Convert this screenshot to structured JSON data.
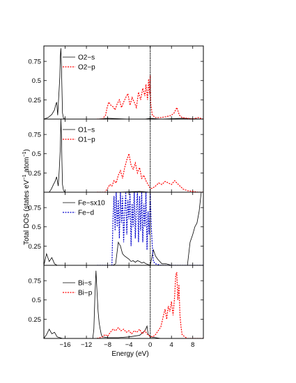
{
  "chart_data": {
    "type": "line",
    "xlabel": "Energy (eV)",
    "ylabel_main": "Total DOS (states eV",
    "ylabel_sup1": "−1",
    "ylabel_mid": " atom",
    "ylabel_sup2": "−1",
    "ylabel_end": ")",
    "xlim": [
      -20,
      10
    ],
    "x_ticks": [
      -16,
      -12,
      -8,
      -4,
      0,
      4,
      8
    ],
    "x_tick_labels": [
      "−16",
      "−12",
      "−8",
      "−4",
      "0",
      "4",
      "8"
    ],
    "fermi_level": 0,
    "panels": [
      {
        "ylim": [
          0,
          0.95
        ],
        "y_ticks": [
          0.25,
          0.5,
          0.75
        ],
        "y_tick_labels": [
          "0.25",
          "0.5",
          "0.75"
        ],
        "series": [
          {
            "name": "O2−s",
            "color": "#000000",
            "dash": "",
            "x": [
              -20,
              -19.2,
              -18.5,
              -18,
              -17.8,
              -17.6,
              -17.4,
              -17.2,
              -17.0,
              -16.9,
              -16.8,
              -16.7,
              -16.6,
              -16.5,
              -16.3,
              -16.0,
              -14,
              -10,
              -8,
              -4,
              -1,
              0,
              2,
              6,
              10
            ],
            "y": [
              0.0,
              0.02,
              0.06,
              0.12,
              0.18,
              0.22,
              0.05,
              0.3,
              0.55,
              0.82,
              0.92,
              0.7,
              0.4,
              0.08,
              0.01,
              0.0,
              0.0,
              0.0,
              0.01,
              0.0,
              0.0,
              0.01,
              0.0,
              0.01,
              0.0
            ]
          },
          {
            "name": "O2−p",
            "color": "#ff0000",
            "dash": "2,1.5",
            "x": [
              -10,
              -9,
              -8.4,
              -8.1,
              -7.8,
              -7.4,
              -7.0,
              -6.6,
              -6.2,
              -5.8,
              -5.4,
              -5.0,
              -4.6,
              -4.2,
              -3.8,
              -3.4,
              -3.0,
              -2.6,
              -2.2,
              -1.8,
              -1.4,
              -1.0,
              -0.8,
              -0.5,
              -0.3,
              -0.1,
              0.0,
              0.1,
              0.4,
              1.0,
              2.0,
              3.0,
              4.0,
              4.5,
              5.0,
              5.5,
              6.0,
              7.0,
              8.0,
              9.0,
              10
            ],
            "y": [
              0.0,
              0.0,
              0.05,
              0.15,
              0.22,
              0.18,
              0.16,
              0.12,
              0.2,
              0.25,
              0.15,
              0.22,
              0.28,
              0.33,
              0.18,
              0.28,
              0.22,
              0.15,
              0.35,
              0.25,
              0.4,
              0.3,
              0.45,
              0.25,
              0.52,
              0.32,
              0.57,
              0.2,
              0.05,
              0.02,
              0.02,
              0.03,
              0.05,
              0.08,
              0.15,
              0.05,
              0.02,
              0.01,
              0.0,
              0.02,
              0.0
            ]
          }
        ]
      },
      {
        "ylim": [
          0,
          0.95
        ],
        "y_ticks": [
          0.25,
          0.5,
          0.75
        ],
        "y_tick_labels": [
          "0.25",
          "0.5",
          "0.75"
        ],
        "series": [
          {
            "name": "O1−s",
            "color": "#000000",
            "dash": "",
            "x": [
              -20,
              -19,
              -18.6,
              -18.2,
              -17.9,
              -17.6,
              -17.3,
              -17.1,
              -16.9,
              -16.8,
              -16.7,
              -16.6,
              -16.5,
              -16.3,
              -16,
              -12,
              -10,
              -6,
              -2,
              0,
              4,
              10
            ],
            "y": [
              0.0,
              0.0,
              0.04,
              0.1,
              0.14,
              0.2,
              0.08,
              0.3,
              0.58,
              0.95,
              0.75,
              0.4,
              0.1,
              0.02,
              0.0,
              0.0,
              0.0,
              0.0,
              0.01,
              0.0,
              0.0,
              0.0
            ]
          },
          {
            "name": "O1−p",
            "color": "#ff0000",
            "dash": "2,1.5",
            "x": [
              -10,
              -8.5,
              -8.0,
              -7.6,
              -7.2,
              -6.8,
              -6.4,
              -6.0,
              -5.6,
              -5.2,
              -4.8,
              -4.4,
              -4.0,
              -3.6,
              -3.2,
              -2.8,
              -2.4,
              -2.0,
              -1.6,
              -1.2,
              -0.8,
              -0.4,
              0.0,
              0.4,
              1.0,
              1.6,
              2.2,
              2.8,
              3.4,
              4.0,
              4.6,
              5.0,
              5.6,
              6.2,
              7.0,
              8.0,
              9.0,
              10
            ],
            "y": [
              0.0,
              0.0,
              0.05,
              0.1,
              0.08,
              0.15,
              0.12,
              0.22,
              0.28,
              0.18,
              0.32,
              0.42,
              0.5,
              0.35,
              0.3,
              0.38,
              0.25,
              0.32,
              0.18,
              0.22,
              0.15,
              0.1,
              0.05,
              0.05,
              0.08,
              0.12,
              0.1,
              0.14,
              0.12,
              0.1,
              0.15,
              0.12,
              0.08,
              0.04,
              0.02,
              0.01,
              0.0,
              0.0
            ]
          }
        ]
      },
      {
        "ylim": [
          0,
          0.95
        ],
        "y_ticks": [
          0.25,
          0.5,
          0.75
        ],
        "y_tick_labels": [
          "0.25",
          "0.5",
          "0.75"
        ],
        "series": [
          {
            "name": "Fe−sx10",
            "color": "#000000",
            "dash": "",
            "x": [
              -20,
              -19.5,
              -19.0,
              -18.5,
              -18.0,
              -17.5,
              -17.0,
              -16.5,
              -16.0,
              -15.0,
              -12.0,
              -10.0,
              -8.0,
              -7.0,
              -6.5,
              -6.0,
              -5.6,
              -5.2,
              -4.8,
              -4.4,
              -4.0,
              -3.6,
              -3.2,
              -2.8,
              -2.4,
              -2.0,
              -1.6,
              -1.2,
              -0.8,
              -0.4,
              0.0,
              0.6,
              1.0,
              1.4,
              1.8,
              2.2,
              3.0,
              4.0,
              5.0,
              6.0,
              7.0,
              7.5,
              8.0,
              8.4,
              8.8,
              9.2,
              9.6,
              10
            ],
            "y": [
              0.0,
              0.15,
              0.05,
              0.1,
              0.02,
              0.0,
              0.0,
              0.0,
              0.0,
              0.0,
              0.0,
              0.0,
              0.0,
              0.0,
              0.02,
              0.3,
              0.25,
              0.15,
              0.12,
              0.1,
              0.08,
              0.05,
              0.06,
              0.04,
              0.06,
              0.05,
              0.03,
              0.04,
              0.02,
              0.01,
              0.0,
              0.2,
              0.12,
              0.08,
              0.05,
              0.02,
              0.02,
              0.0,
              0.0,
              0.0,
              0.0,
              0.3,
              0.4,
              0.5,
              0.55,
              0.7,
              0.95,
              0.95
            ]
          },
          {
            "name": "Fe−d",
            "color": "#0000cc",
            "dash": "2,1.5",
            "x": [
              -10,
              -7.5,
              -7.2,
              -7.0,
              -6.8,
              -6.6,
              -6.4,
              -6.2,
              -6.0,
              -5.8,
              -5.6,
              -5.4,
              -5.2,
              -5.0,
              -4.8,
              -4.6,
              -4.4,
              -4.2,
              -4.0,
              -3.8,
              -3.6,
              -3.4,
              -3.2,
              -3.0,
              -2.8,
              -2.6,
              -2.4,
              -2.2,
              -2.0,
              -1.8,
              -1.6,
              -1.4,
              -1.2,
              -1.0,
              -0.8,
              -0.6,
              -0.4,
              -0.2,
              0.0,
              0.2,
              0.4,
              0.6,
              1.0,
              2.0,
              3.0,
              4.0,
              6.0,
              8.0,
              10
            ],
            "y": [
              0.0,
              0.0,
              0.0,
              0.6,
              0.9,
              0.45,
              0.95,
              0.5,
              0.85,
              0.35,
              0.95,
              0.55,
              0.9,
              0.3,
              0.7,
              0.95,
              0.4,
              0.85,
              0.6,
              0.95,
              0.25,
              0.8,
              0.5,
              0.95,
              0.35,
              0.75,
              0.95,
              0.3,
              0.9,
              0.45,
              0.95,
              0.3,
              0.8,
              0.5,
              0.95,
              0.2,
              0.7,
              0.4,
              0.95,
              0.5,
              0.25,
              0.05,
              0.02,
              0.0,
              0.0,
              0.0,
              0.0,
              0.0,
              0.0
            ]
          }
        ]
      },
      {
        "ylim": [
          0,
          0.95
        ],
        "y_ticks": [
          0.25,
          0.5,
          0.75
        ],
        "y_tick_labels": [
          "0.25",
          "0.5",
          "0.75"
        ],
        "series": [
          {
            "name": "Bi−s",
            "color": "#000000",
            "dash": "",
            "x": [
              -20,
              -19.5,
              -19.0,
              -18.5,
              -18.0,
              -17.5,
              -17.0,
              -16.5,
              -16.0,
              -14.0,
              -12.0,
              -10.8,
              -10.6,
              -10.4,
              -10.2,
              -10.0,
              -9.8,
              -9.6,
              -9.4,
              -9.2,
              -9.0,
              -8.0,
              -6.0,
              -4.0,
              -2.0,
              -1.0,
              -0.6,
              -0.4,
              0.0,
              2.0,
              4.0,
              6.0,
              8.0,
              10
            ],
            "y": [
              0.0,
              0.05,
              0.12,
              0.06,
              0.08,
              0.02,
              0.01,
              0.0,
              0.0,
              0.0,
              0.0,
              0.0,
              0.12,
              0.55,
              0.88,
              0.6,
              0.35,
              0.2,
              0.12,
              0.05,
              0.02,
              0.01,
              0.01,
              0.02,
              0.04,
              0.1,
              0.16,
              0.06,
              0.02,
              0.0,
              0.0,
              0.0,
              0.0,
              0.0
            ]
          },
          {
            "name": "Bi−p",
            "color": "#ff0000",
            "dash": "2,1.5",
            "x": [
              -10,
              -9.0,
              -8.5,
              -8.0,
              -7.5,
              -7.0,
              -6.5,
              -6.0,
              -5.5,
              -5.0,
              -4.5,
              -4.0,
              -3.5,
              -3.0,
              -2.5,
              -2.0,
              -1.5,
              -1.0,
              -0.5,
              0.0,
              0.5,
              1.0,
              1.5,
              2.0,
              2.5,
              2.8,
              3.1,
              3.4,
              3.7,
              4.0,
              4.3,
              4.6,
              4.8,
              5.0,
              5.2,
              5.4,
              5.6,
              5.8,
              6.0,
              6.5,
              7.0,
              8.0,
              9.0,
              10
            ],
            "y": [
              0.0,
              0.02,
              0.05,
              0.03,
              0.08,
              0.12,
              0.1,
              0.14,
              0.1,
              0.12,
              0.08,
              0.1,
              0.06,
              0.1,
              0.08,
              0.12,
              0.06,
              0.1,
              0.05,
              0.03,
              0.02,
              0.05,
              0.1,
              0.15,
              0.3,
              0.38,
              0.25,
              0.42,
              0.35,
              0.48,
              0.3,
              0.55,
              0.82,
              0.86,
              0.5,
              0.7,
              0.3,
              0.15,
              0.05,
              0.02,
              0.0,
              0.0,
              0.0,
              0.0
            ]
          }
        ]
      }
    ]
  }
}
